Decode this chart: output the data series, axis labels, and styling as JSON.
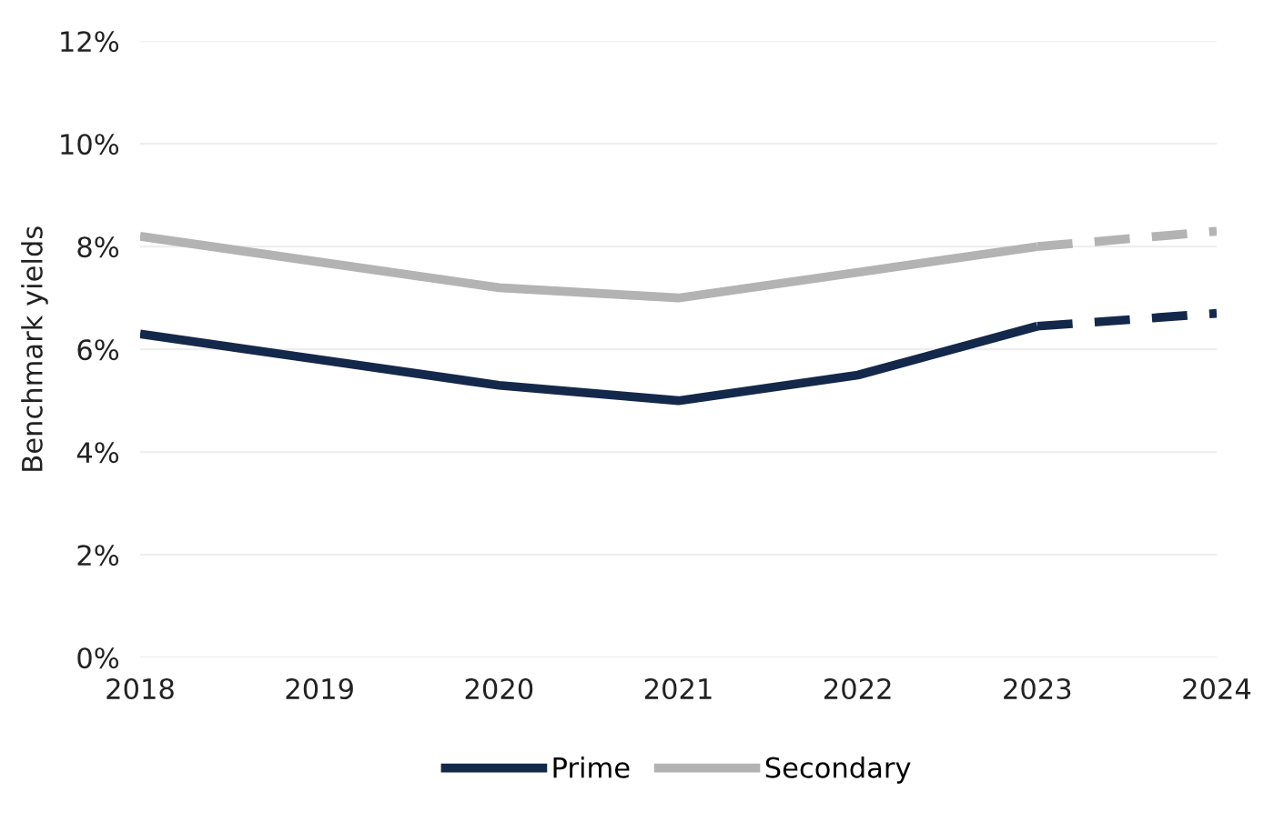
{
  "chart_data": {
    "type": "line",
    "ylabel": "Benchmark yields",
    "xlim": [
      2018,
      2024
    ],
    "xticks": [
      2018,
      2019,
      2020,
      2021,
      2022,
      2023,
      2024
    ],
    "ylim": [
      0,
      12
    ],
    "yticks": [
      {
        "value": 0,
        "label": "0%"
      },
      {
        "value": 2,
        "label": "2%"
      },
      {
        "value": 4,
        "label": "4%"
      },
      {
        "value": 6,
        "label": "6%"
      },
      {
        "value": 8,
        "label": "8%"
      },
      {
        "value": 10,
        "label": "10%"
      },
      {
        "value": 12,
        "label": "12%"
      }
    ],
    "grid": "y",
    "legend": "bottom",
    "marker": "none",
    "series": [
      {
        "name": "Prime",
        "color": "#14284b",
        "line_style": "solid",
        "x": [
          2018,
          2019,
          2020,
          2021,
          2022,
          2023
        ],
        "values": [
          6.3,
          5.8,
          5.3,
          5.0,
          5.5,
          6.45
        ]
      },
      {
        "name": "Secondary",
        "color": "#b3b3b3",
        "line_style": "solid",
        "x": [
          2018,
          2019,
          2020,
          2021,
          2022,
          2023
        ],
        "values": [
          8.2,
          7.7,
          7.2,
          7.0,
          7.5,
          8.0
        ]
      },
      {
        "color": "#14284b",
        "line_style": "dashed",
        "x": [
          2023,
          2024
        ],
        "values": [
          6.45,
          6.7
        ]
      },
      {
        "color": "#b3b3b3",
        "line_style": "dashed",
        "x": [
          2023,
          2024
        ],
        "values": [
          8.0,
          8.3
        ]
      }
    ]
  }
}
